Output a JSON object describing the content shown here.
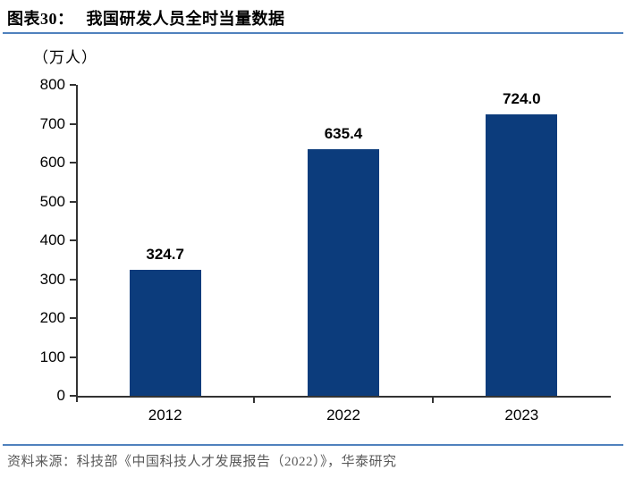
{
  "header": {
    "figure_label": "图表30：",
    "title": "我国研发人员全时当量数据"
  },
  "chart_data": {
    "type": "bar",
    "title": "我国研发人员全时当量数据",
    "unit_label": "（万人）",
    "categories": [
      "2012",
      "2022",
      "2023"
    ],
    "values": [
      324.7,
      635.4,
      724.0
    ],
    "data_labels": [
      "324.7",
      "635.4",
      "724.0"
    ],
    "xlabel": "",
    "ylabel": "万人",
    "ylim": [
      0,
      800
    ],
    "ytick_step": 100,
    "ytick_labels": [
      "0",
      "100",
      "200",
      "300",
      "400",
      "500",
      "600",
      "700",
      "800"
    ],
    "grid": false,
    "legend": "none",
    "bar_color": "#0C3C7C"
  },
  "footer": {
    "source": "资料来源：科技部《中国科技人才发展报告（2022）》，华泰研究"
  },
  "colors": {
    "accent_line": "#4F81BD",
    "bar": "#0C3C7C",
    "axis": "#333333",
    "footer_text": "#595959",
    "title_text": "#000000"
  }
}
